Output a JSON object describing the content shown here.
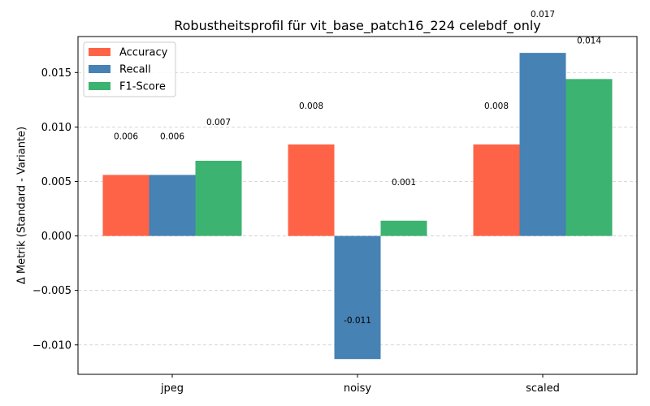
{
  "chart_data": {
    "type": "bar",
    "title": "Robustheitsprofil für vit_base_patch16_224 celebdf_only",
    "xlabel": "",
    "ylabel": "Δ Metrik (Standard - Variante)",
    "categories": [
      "jpeg",
      "noisy",
      "scaled"
    ],
    "series": [
      {
        "name": "Accuracy",
        "color": "#ff6347",
        "values": [
          0.0056,
          0.0084,
          0.0084
        ],
        "labels": [
          "0.006",
          "0.008",
          "0.008"
        ]
      },
      {
        "name": "Recall",
        "color": "#4682b4",
        "values": [
          0.0056,
          -0.0113,
          0.0168
        ],
        "labels": [
          "0.006",
          "-0.011",
          "0.017"
        ]
      },
      {
        "name": "F1-Score",
        "color": "#3cb371",
        "values": [
          0.0069,
          0.0014,
          0.0144
        ],
        "labels": [
          "0.007",
          "0.001",
          "0.014"
        ]
      }
    ],
    "ylim": [
      -0.0127,
      0.0183
    ],
    "yticks": [
      -0.01,
      -0.005,
      0.0,
      0.005,
      0.01,
      0.015
    ],
    "ytick_labels": [
      "−0.010",
      "−0.005",
      "0.000",
      "0.005",
      "0.010",
      "0.015"
    ],
    "grid": "y, dashed",
    "legend_position": "upper-left"
  }
}
